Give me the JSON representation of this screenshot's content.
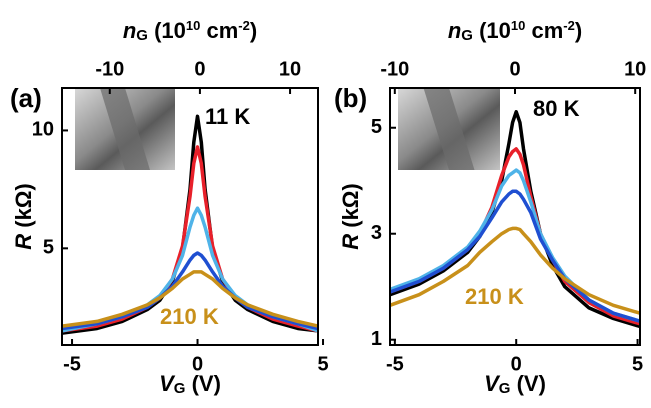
{
  "chart_data": [
    {
      "type": "line",
      "panel_label": "(a)",
      "x_label": [
        {
          "text": "V",
          "style": "italic"
        },
        {
          "text": "G",
          "style": "sub"
        },
        {
          "text": " (V)"
        }
      ],
      "x2_label": [
        {
          "text": "n",
          "style": "italic"
        },
        {
          "text": "G",
          "style": "sub"
        },
        {
          "text": " (10"
        },
        {
          "text": "10",
          "style": "sup"
        },
        {
          "text": " cm"
        },
        {
          "text": "-2",
          "style": "sup"
        },
        {
          "text": ")"
        }
      ],
      "y_label": [
        {
          "text": "R",
          "style": "italic"
        },
        {
          "text": " (kΩ)"
        }
      ],
      "x": [
        -5.4,
        -4,
        -3,
        -2,
        -1.5,
        -1,
        -0.6,
        -0.3,
        -0.15,
        0,
        0.15,
        0.3,
        0.6,
        1,
        1.5,
        2,
        3,
        4,
        4.8
      ],
      "series": [
        {
          "color": "#000000",
          "values": [
            1.4,
            1.6,
            1.9,
            2.4,
            2.8,
            3.6,
            5.0,
            7.5,
            9.5,
            10.6,
            9.5,
            7.5,
            5.0,
            3.6,
            2.8,
            2.4,
            1.9,
            1.6,
            1.5
          ]
        },
        {
          "color": "#e8202a",
          "values": [
            1.5,
            1.7,
            2.0,
            2.5,
            2.9,
            3.7,
            5.1,
            7.2,
            8.6,
            9.3,
            8.6,
            7.2,
            5.1,
            3.7,
            2.9,
            2.5,
            2.0,
            1.7,
            1.5
          ]
        },
        {
          "color": "#4fb3e8",
          "values": [
            1.5,
            1.8,
            2.1,
            2.6,
            3.0,
            3.7,
            4.7,
            5.9,
            6.4,
            6.7,
            6.4,
            5.9,
            4.7,
            3.7,
            3.0,
            2.6,
            2.1,
            1.8,
            1.5
          ]
        },
        {
          "color": "#1f4fd1",
          "values": [
            1.6,
            1.8,
            2.1,
            2.5,
            2.9,
            3.4,
            4.0,
            4.5,
            4.7,
            4.8,
            4.7,
            4.5,
            4.0,
            3.4,
            2.9,
            2.5,
            2.1,
            1.8,
            1.6
          ]
        },
        {
          "color": "#c8901a",
          "values": [
            1.7,
            1.9,
            2.2,
            2.6,
            2.9,
            3.3,
            3.7,
            3.9,
            4.0,
            4.0,
            4.0,
            3.9,
            3.7,
            3.3,
            2.9,
            2.6,
            2.2,
            1.9,
            1.7
          ]
        }
      ],
      "xlim": [
        -5.4,
        4.8
      ],
      "xticks": [
        -5,
        0,
        5
      ],
      "x2lim": [
        -15.3,
        13.1
      ],
      "x2ticks": [
        -10,
        0,
        10
      ],
      "ylim": [
        0.9,
        11.8
      ],
      "yticks": [
        5,
        10
      ],
      "annotations": [
        {
          "text": "11 K",
          "color": "#000000"
        },
        {
          "text": "210 K",
          "color": "#c8901a"
        }
      ]
    },
    {
      "type": "line",
      "panel_label": "(b)",
      "x_label": [
        {
          "text": "V",
          "style": "italic"
        },
        {
          "text": "G",
          "style": "sub"
        },
        {
          "text": " (V)"
        }
      ],
      "x2_label": [
        {
          "text": "n",
          "style": "italic"
        },
        {
          "text": "G",
          "style": "sub"
        },
        {
          "text": " (10"
        },
        {
          "text": "10",
          "style": "sup"
        },
        {
          "text": " cm"
        },
        {
          "text": "-2",
          "style": "sup"
        },
        {
          "text": ")"
        }
      ],
      "y_label": [
        {
          "text": "R",
          "style": "italic"
        },
        {
          "text": " (kΩ)"
        }
      ],
      "x": [
        -5.2,
        -4,
        -3,
        -2,
        -1.5,
        -1,
        -0.6,
        -0.3,
        -0.15,
        0,
        0.15,
        0.3,
        0.6,
        1,
        1.5,
        2,
        3,
        4,
        5.1
      ],
      "series": [
        {
          "color": "#000000",
          "values": [
            1.85,
            2.05,
            2.3,
            2.65,
            2.95,
            3.4,
            4.0,
            4.7,
            5.1,
            5.3,
            5.1,
            4.6,
            3.8,
            3.0,
            2.4,
            2.0,
            1.6,
            1.4,
            1.25
          ]
        },
        {
          "color": "#e8202a",
          "values": [
            1.9,
            2.1,
            2.35,
            2.7,
            3.0,
            3.5,
            4.1,
            4.45,
            4.55,
            4.6,
            4.5,
            4.3,
            3.7,
            3.0,
            2.5,
            2.1,
            1.7,
            1.45,
            1.3
          ]
        },
        {
          "color": "#4fb3e8",
          "values": [
            1.95,
            2.15,
            2.4,
            2.75,
            3.05,
            3.45,
            3.9,
            4.1,
            4.15,
            4.2,
            4.15,
            4.0,
            3.6,
            3.0,
            2.55,
            2.2,
            1.75,
            1.5,
            1.35
          ]
        },
        {
          "color": "#1f4fd1",
          "values": [
            1.9,
            2.1,
            2.35,
            2.7,
            2.95,
            3.3,
            3.6,
            3.75,
            3.8,
            3.8,
            3.75,
            3.65,
            3.4,
            2.9,
            2.5,
            2.15,
            1.75,
            1.5,
            1.35
          ]
        },
        {
          "color": "#c8901a",
          "values": [
            1.65,
            1.85,
            2.1,
            2.4,
            2.65,
            2.85,
            3.0,
            3.08,
            3.1,
            3.1,
            3.08,
            3.0,
            2.85,
            2.6,
            2.35,
            2.15,
            1.85,
            1.65,
            1.5
          ]
        }
      ],
      "xlim": [
        -5.2,
        5.1
      ],
      "xticks": [
        -5,
        0,
        5
      ],
      "x2lim": [
        -10.4,
        10.4
      ],
      "x2ticks": [
        -10,
        0,
        10
      ],
      "ylim": [
        0.9,
        5.75
      ],
      "yticks": [
        1,
        3,
        5
      ],
      "annotations": [
        {
          "text": "80 K",
          "color": "#000000"
        },
        {
          "text": "210 K",
          "color": "#c8901a"
        }
      ]
    }
  ]
}
